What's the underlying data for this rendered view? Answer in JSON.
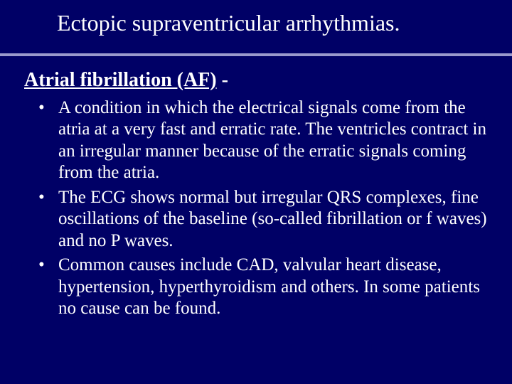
{
  "slide": {
    "background_color": "#000066",
    "text_color": "#ffffff",
    "divider_color": "#9999cc",
    "font_family": "Times New Roman",
    "title": "Ectopic supraventricular arrhythmias.",
    "title_fontsize": 32,
    "heading_underlined": "Atrial fibrillation (AF)",
    "heading_suffix": " -",
    "heading_fontsize": 28,
    "heading_fontweight": 700,
    "body_fontsize": 25,
    "bullets": [
      "A condition in which the electrical signals come from the atria at a very fast and erratic rate. The ventricles contract in an irregular manner because of the erratic signals coming from the atria.",
      "The ECG shows normal but irregular QRS complexes, fine oscillations of the baseline (so-called fibrillation or f waves) and no P waves.",
      "Common causes include CAD, valvular heart disease, hypertension, hyperthyroidism and others. In some patients no cause can be found."
    ]
  }
}
